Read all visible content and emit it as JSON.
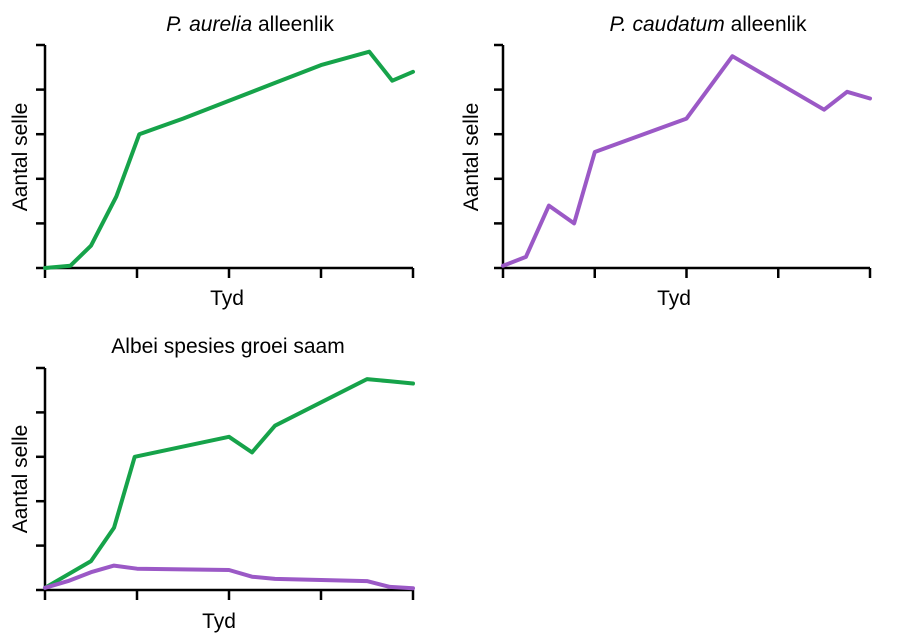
{
  "colors": {
    "aurelia": "#16a34a",
    "caudatum": "#9b59c6"
  },
  "chart_data": [
    {
      "type": "line",
      "title_italic": "P. aurelia",
      "title_rest": " alleenlik",
      "xlabel": "Tyd",
      "ylabel": "Aantal selle",
      "xlim": [
        0,
        8
      ],
      "ylim": [
        0,
        5
      ],
      "series": [
        {
          "color_key": "aurelia",
          "x": [
            0,
            0.55,
            1.0,
            1.55,
            2.05,
            3.0,
            4.0,
            5.0,
            6.0,
            7.05,
            7.55,
            8.0
          ],
          "y": [
            0,
            0.05,
            0.5,
            1.6,
            3.0,
            3.35,
            3.75,
            4.15,
            4.55,
            4.85,
            4.2,
            4.4
          ]
        }
      ]
    },
    {
      "type": "line",
      "title_italic": "P. caudatum",
      "title_rest": " alleenlik",
      "xlabel": "Tyd",
      "ylabel": "Aantal selle",
      "xlim": [
        0,
        8
      ],
      "ylim": [
        0,
        5
      ],
      "series": [
        {
          "color_key": "caudatum",
          "x": [
            0,
            0.5,
            1.0,
            1.55,
            2.0,
            4.0,
            5.0,
            7.0,
            7.5,
            8.0
          ],
          "y": [
            0.05,
            0.25,
            1.4,
            1.0,
            2.6,
            3.35,
            4.75,
            3.55,
            3.95,
            3.8
          ]
        }
      ]
    },
    {
      "type": "line",
      "title": "Albei spesies groei saam",
      "xlabel": "Tyd",
      "ylabel": "Aantal selle",
      "xlim": [
        0,
        8
      ],
      "ylim": [
        0,
        5
      ],
      "series": [
        {
          "color_key": "aurelia",
          "x": [
            0,
            1.0,
            1.5,
            1.95,
            4.0,
            4.5,
            5.0,
            7.0,
            7.5,
            8.0
          ],
          "y": [
            0.05,
            0.65,
            1.4,
            3.0,
            3.45,
            3.1,
            3.7,
            4.75,
            4.7,
            4.65
          ]
        },
        {
          "color_key": "caudatum",
          "x": [
            0,
            0.5,
            1.0,
            1.5,
            2.0,
            4.0,
            4.5,
            5.0,
            7.0,
            7.5,
            8.0
          ],
          "y": [
            0.05,
            0.2,
            0.4,
            0.55,
            0.48,
            0.45,
            0.3,
            0.25,
            0.2,
            0.07,
            0.04
          ]
        }
      ]
    }
  ]
}
